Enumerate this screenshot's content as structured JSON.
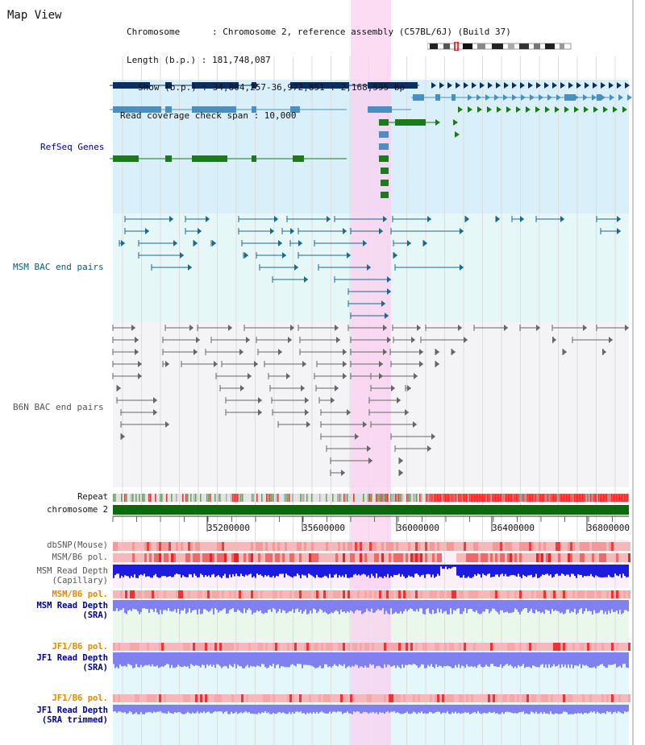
{
  "title": "Map View",
  "header": {
    "chromosome_label": "Chromosome      : Chromosome 2, reference assembly (C57BL/6J) (Build 37)",
    "length_label": "Length (b.p.) : 181,748,087",
    "show_label": "Show (b.p.) : 34,804,257-36,972,851 : 2,168,595 bp",
    "coverage_label": "Read coverage check span : 10,000"
  },
  "colors": {
    "highlight": "#f9d0ef",
    "refseq_bg": "#d9eff9",
    "msm_bac_bg": "#e6f7f7",
    "b6n_bac_bg": "#f4f4f7",
    "gene_navy": "#0c2f63",
    "gene_steel": "#4a8fbf",
    "gene_green": "#1c7a1c",
    "chromosome_bar": "#0b6a0b",
    "read_depth_blue": "#1c1ce0",
    "read_depth_light": "#8080ee",
    "pol_red": "#e33",
    "label_navy": "#00008b",
    "label_teal": "#006080",
    "label_orange": "#e08a00",
    "label_gray": "#555555"
  },
  "tracks": {
    "refseq": "RefSeq Genes",
    "msm_bac": "MSM BAC end pairs",
    "b6n_bac": "B6N BAC end pairs",
    "repeat": "Repeat",
    "chromosome": "chromosome 2",
    "dbsnp": "dbSNP(Mouse)",
    "msm_b6_pol": "MSM/B6 pol.",
    "msm_read_depth_cap_1": "MSM Read Depth",
    "msm_read_depth_cap_2": "(Capillary)",
    "msm_b6_pol_2": "MSM/B6 pol.",
    "msm_read_depth_sra_1": "MSM Read Depth",
    "msm_read_depth_sra_2": "(SRA)",
    "jf1_b6_pol": "JF1/B6 pol.",
    "jf1_read_depth_sra_1": "JF1 Read Depth",
    "jf1_read_depth_sra_2": "(SRA)",
    "jf1_b6_pol_2": "JF1/B6 pol.",
    "jf1_read_depth_trim_1": "JF1 Read Depth",
    "jf1_read_depth_trim_2": "(SRA trimmed)"
  },
  "axis": {
    "ticks": [
      "35200000",
      "35600000",
      "36000000",
      "36400000",
      "36800000"
    ]
  }
}
